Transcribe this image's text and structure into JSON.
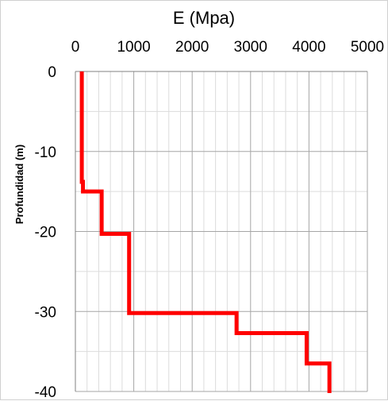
{
  "chart_data": {
    "type": "line",
    "title": "",
    "xlabel": "E (Mpa)",
    "ylabel": "Profundidad (m)",
    "x_axis_position": "top",
    "xlim": [
      0,
      5000
    ],
    "ylim": [
      -40,
      0
    ],
    "x_ticks": [
      0,
      1000,
      2000,
      3000,
      4000,
      5000
    ],
    "x_tick_labels": [
      "0",
      "1000",
      "2000",
      "3000",
      "4000",
      "5000"
    ],
    "y_ticks": [
      0,
      -10,
      -20,
      -30,
      -40
    ],
    "y_tick_labels": [
      "0",
      "-10",
      "-20",
      "-30",
      "-40"
    ],
    "x_minor_step": 200,
    "y_minor_step": 5,
    "grid": true,
    "series": [
      {
        "color": "#ff0000",
        "x": [
          110,
          110,
          130,
          130,
          450,
          450,
          920,
          920,
          2760,
          2760,
          3960,
          3960,
          4350,
          4350
        ],
        "y": [
          0,
          -13.8,
          -13.8,
          -15,
          -15,
          -20.3,
          -20.3,
          -30.2,
          -30.2,
          -32.7,
          -32.7,
          -36.5,
          -36.5,
          -40.2
        ]
      }
    ]
  }
}
